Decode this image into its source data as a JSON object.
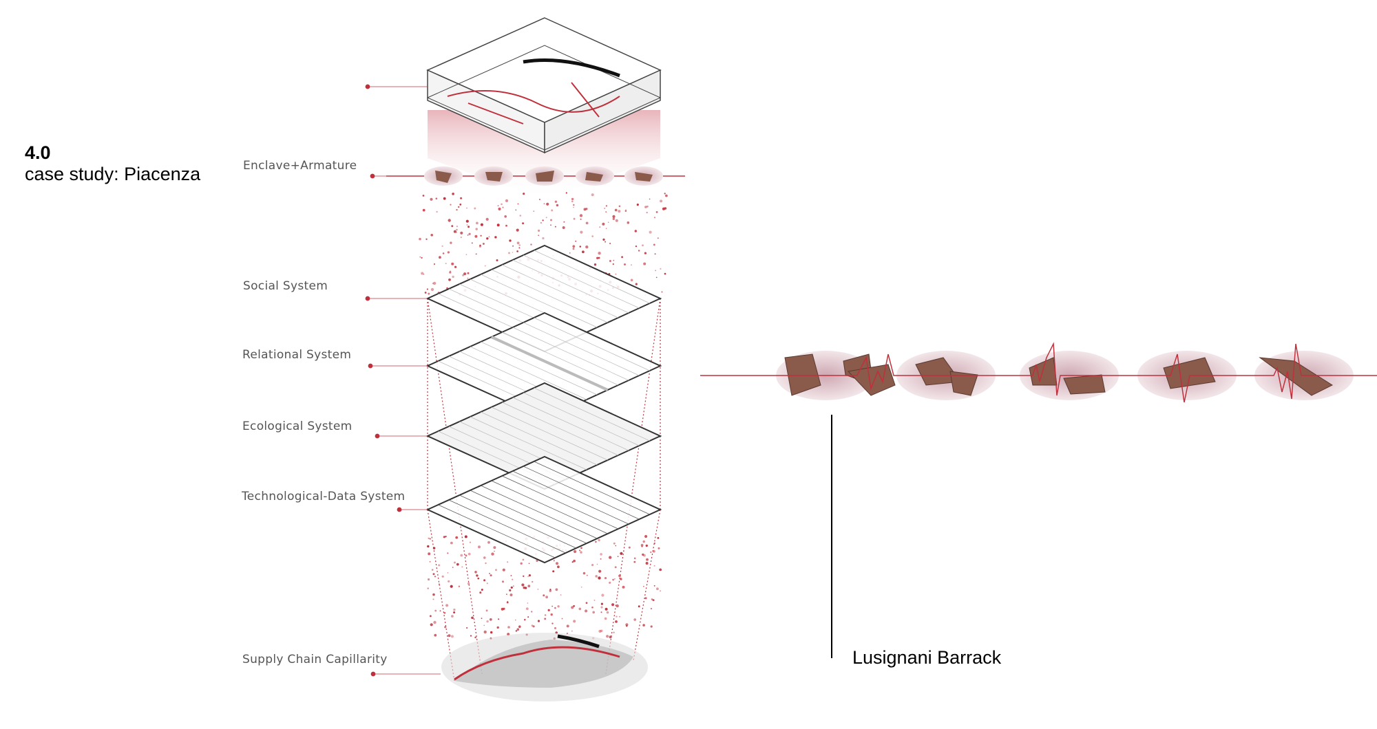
{
  "header": {
    "section_number": "4.0",
    "section_title": "case study: Piacenza"
  },
  "layers": [
    {
      "label": "Enclave+Armature"
    },
    {
      "label": "Social System"
    },
    {
      "label": "Relational System"
    },
    {
      "label": "Ecological System"
    },
    {
      "label": "Technological-Data System"
    },
    {
      "label": "Supply Chain Capillarity"
    }
  ],
  "case": {
    "label": "Lusignani Barrack"
  },
  "colors": {
    "accent": "#c0303c",
    "line_gray": "#555555",
    "ellipse_fill": "#e9d3d8",
    "building": "#8a5a4a"
  }
}
